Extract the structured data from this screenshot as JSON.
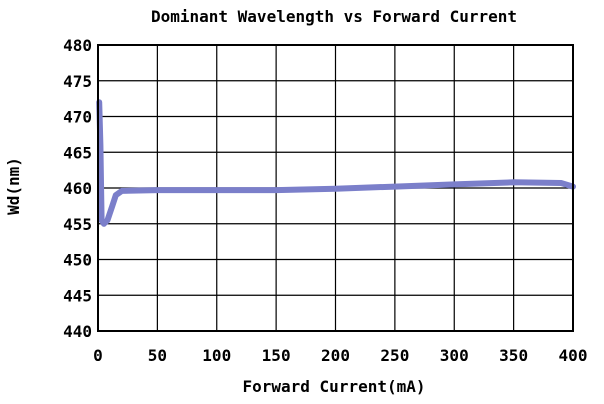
{
  "chart_data": {
    "type": "line",
    "title": "Dominant Wavelength vs Forward Current",
    "xlabel": "Forward Current(mA)",
    "ylabel": "Wd(nm)",
    "xlim": [
      0,
      400
    ],
    "ylim": [
      440,
      480
    ],
    "xticks": [
      "0",
      "50",
      "100",
      "150",
      "200",
      "250",
      "300",
      "350",
      "400"
    ],
    "yticks": [
      "440",
      "445",
      "450",
      "455",
      "460",
      "465",
      "470",
      "475",
      "480"
    ],
    "grid": true,
    "series": [
      {
        "color": "#7b7fca",
        "points": [
          [
            1,
            472.0
          ],
          [
            2,
            466.0
          ],
          [
            3,
            455.5
          ],
          [
            5,
            455.0
          ],
          [
            8,
            455.5
          ],
          [
            12,
            457.5
          ],
          [
            15,
            459.0
          ],
          [
            20,
            459.6
          ],
          [
            50,
            459.7
          ],
          [
            100,
            459.7
          ],
          [
            150,
            459.7
          ],
          [
            200,
            459.9
          ],
          [
            250,
            460.2
          ],
          [
            300,
            460.5
          ],
          [
            350,
            460.8
          ],
          [
            390,
            460.7
          ],
          [
            400,
            460.2
          ]
        ]
      }
    ]
  }
}
